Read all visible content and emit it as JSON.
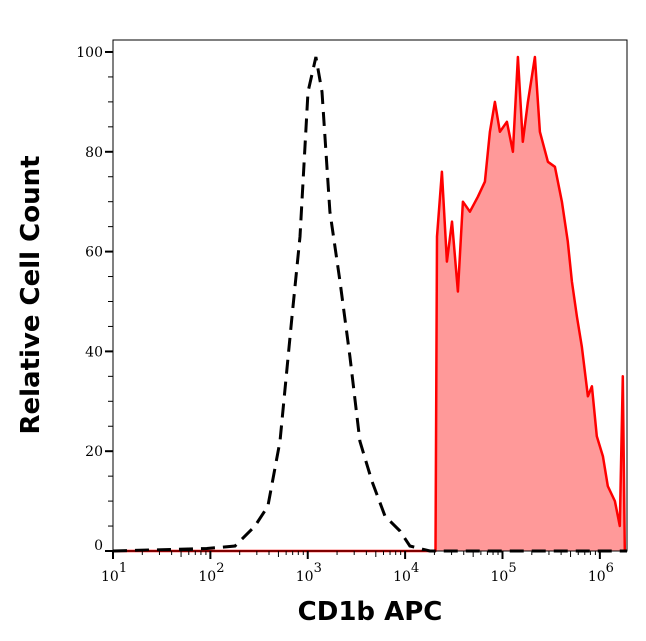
{
  "chart_data": {
    "type": "area",
    "xlabel": "CD1b APC",
    "ylabel": "Relative Cell Count",
    "xscale": "log",
    "xlim": [
      10,
      1900000
    ],
    "ylim": [
      0,
      102.4
    ],
    "x_ticks": [
      {
        "base": "10",
        "exp": "1",
        "value": 10
      },
      {
        "base": "10",
        "exp": "2",
        "value": 100
      },
      {
        "base": "10",
        "exp": "3",
        "value": 1000
      },
      {
        "base": "10",
        "exp": "4",
        "value": 10000
      },
      {
        "base": "10",
        "exp": "5",
        "value": 100000
      },
      {
        "base": "10",
        "exp": "6",
        "value": 1000000
      }
    ],
    "y_ticks": [
      0,
      20,
      40,
      60,
      80,
      100
    ],
    "grid": false,
    "series": [
      {
        "style": "dashed-line",
        "color": "#000000",
        "x": [
          10,
          92,
          179,
          287,
          390,
          519,
          689,
          832,
          1005,
          1213,
          1400,
          1690,
          2143,
          2710,
          3436,
          4560,
          6209,
          8851,
          11194,
          17990,
          1900000
        ],
        "y": [
          0,
          0.5,
          1,
          5,
          9,
          22,
          47,
          63,
          92,
          99,
          92,
          68,
          54,
          39,
          22,
          14,
          7,
          4,
          1,
          0,
          0
        ]
      },
      {
        "style": "filled",
        "color": "#ff0000",
        "fill": "#ff9999",
        "x": [
          10,
          20500,
          21230,
          23880,
          26850,
          30270,
          34830,
          39170,
          46240,
          55850,
          65920,
          74300,
          83560,
          93970,
          110900,
          127900,
          143900,
          161800,
          182400,
          215300,
          242100,
          292400,
          345100,
          407400,
          468800,
          516400,
          580800,
          653100,
          753400,
          827900,
          931100,
          1074000,
          1208000,
          1426000,
          1603000,
          1722000,
          1803000
        ],
        "y": [
          0,
          0,
          63,
          76,
          58,
          66,
          52,
          70,
          68,
          71,
          74,
          84,
          90,
          84,
          86,
          80,
          99,
          82,
          90,
          99,
          84,
          78,
          77,
          70,
          62,
          54,
          47,
          41,
          31,
          33,
          23,
          19,
          13,
          10,
          5,
          35,
          0
        ]
      }
    ]
  }
}
